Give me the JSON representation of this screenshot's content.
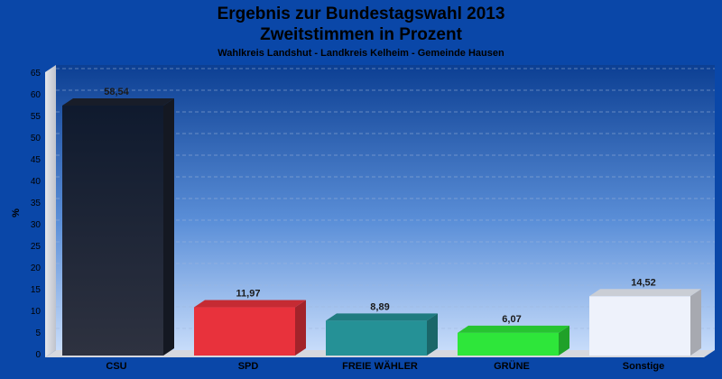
{
  "chart_data": {
    "type": "bar",
    "title": "Ergebnis zur Bundestagswahl 2013",
    "title2": "Zweitstimmen in Prozent",
    "subtitle": "Wahlkreis Landshut - Landkreis Kelheim - Gemeinde Hausen",
    "ylabel": "%",
    "ylim": [
      0,
      65
    ],
    "ytick_step": 5,
    "grid": true,
    "categories": [
      "CSU",
      "SPD",
      "FREIE WÄHLER",
      "GRÜNE",
      "Sonstige"
    ],
    "values": [
      58.54,
      11.97,
      8.89,
      6.07,
      14.52
    ],
    "value_labels": [
      "58,54",
      "11,97",
      "8,89",
      "6,07",
      "14,52"
    ],
    "colors": [
      "#1c2230",
      "#e8323c",
      "#259196",
      "#2ee63a",
      "#eef2fb"
    ]
  }
}
